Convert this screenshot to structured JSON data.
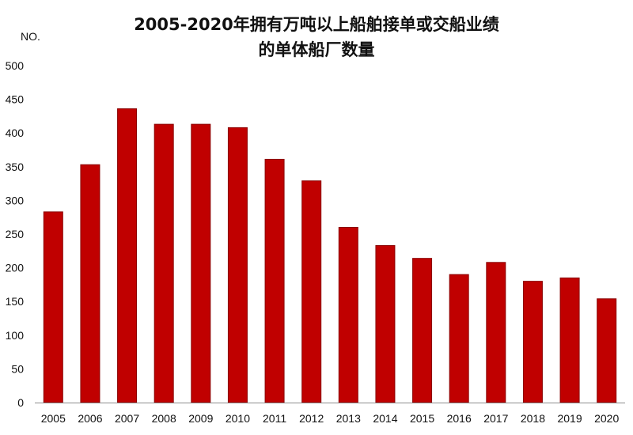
{
  "chart_data": {
    "type": "bar",
    "title_line1": "2005-2020年拥有万吨以上船舶接单或交船业绩",
    "title_line2": "的单体船厂数量",
    "ylabel": "NO.",
    "xlabel": "",
    "categories": [
      "2005",
      "2006",
      "2007",
      "2008",
      "2009",
      "2010",
      "2011",
      "2012",
      "2013",
      "2014",
      "2015",
      "2016",
      "2017",
      "2018",
      "2019",
      "2020"
    ],
    "values": [
      283,
      353,
      436,
      413,
      413,
      408,
      361,
      329,
      260,
      233,
      214,
      190,
      208,
      180,
      185,
      154
    ],
    "ylim": [
      0,
      500
    ],
    "yticks": [
      "0",
      "50",
      "100",
      "150",
      "200",
      "250",
      "300",
      "350",
      "400",
      "450",
      "500"
    ],
    "grid": false,
    "legend": "none",
    "bar_color": "#c00000"
  }
}
